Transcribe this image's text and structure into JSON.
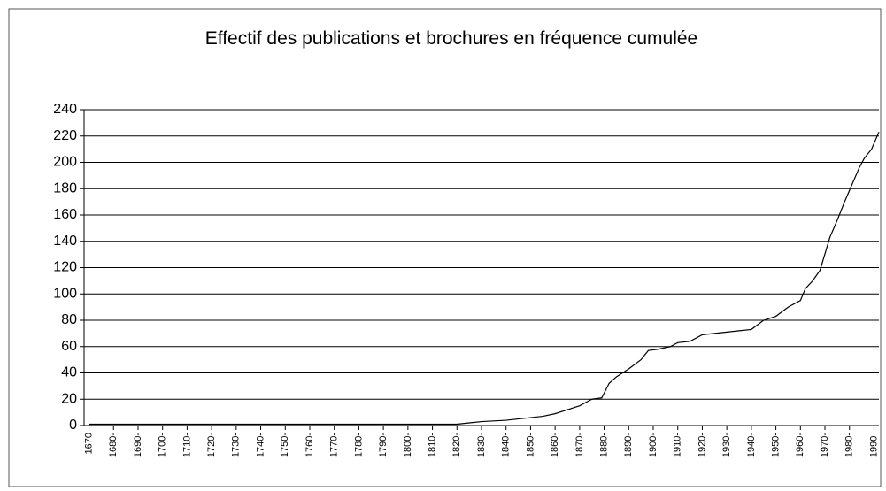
{
  "chart_data": {
    "type": "line",
    "title": "Effectif des publications et brochures en fréquence cumulée",
    "x": [
      1670,
      1820,
      1825,
      1830,
      1840,
      1850,
      1855,
      1860,
      1865,
      1870,
      1875,
      1879,
      1882,
      1885,
      1890,
      1895,
      1898,
      1902,
      1907,
      1910,
      1915,
      1920,
      1925,
      1930,
      1935,
      1940,
      1945,
      1950,
      1955,
      1960,
      1962,
      1965,
      1968,
      1972,
      1975,
      1978,
      1981,
      1984,
      1986,
      1989,
      1992
    ],
    "series": [
      {
        "color": "#000000",
        "values": [
          1,
          1,
          2,
          3,
          4,
          6,
          7,
          9,
          12,
          15,
          20,
          21,
          32,
          37,
          43,
          50,
          57,
          58,
          60,
          63,
          64,
          69,
          70,
          71,
          72,
          73,
          80,
          83,
          90,
          95,
          104,
          110,
          118,
          143,
          156,
          170,
          183,
          196,
          203,
          210,
          223
        ]
      }
    ],
    "xlim": [
      1668,
      1992
    ],
    "xticks": [
      1670,
      {
        "value": 1680,
        "label": "1680-"
      },
      {
        "value": 1690,
        "label": "1690-"
      },
      {
        "value": 1700,
        "label": "1700-"
      },
      {
        "value": 1710,
        "label": "1710-"
      },
      {
        "value": 1720,
        "label": "1720-"
      },
      {
        "value": 1730,
        "label": "1730-"
      },
      {
        "value": 1740,
        "label": "1740-"
      },
      {
        "value": 1750,
        "label": "1750-"
      },
      {
        "value": 1760,
        "label": "1760-"
      },
      {
        "value": 1770,
        "label": "1770-"
      },
      {
        "value": 1780,
        "label": "1780-"
      },
      {
        "value": 1790,
        "label": "1790-"
      },
      {
        "value": 1800,
        "label": "1800-"
      },
      {
        "value": 1810,
        "label": "1810-"
      },
      {
        "value": 1820,
        "label": "1820-"
      },
      {
        "value": 1830,
        "label": "1830-"
      },
      {
        "value": 1840,
        "label": "1840-"
      },
      {
        "value": 1850,
        "label": "1850-"
      },
      {
        "value": 1860,
        "label": "1860-"
      },
      {
        "value": 1870,
        "label": "1870-"
      },
      {
        "value": 1880,
        "label": "1880-"
      },
      {
        "value": 1890,
        "label": "1890-"
      },
      {
        "value": 1900,
        "label": "1900-"
      },
      {
        "value": 1910,
        "label": "1910-"
      },
      {
        "value": 1920,
        "label": "1920-"
      },
      {
        "value": 1930,
        "label": "1930-"
      },
      {
        "value": 1940,
        "label": "1940-"
      },
      {
        "value": 1950,
        "label": "1950-"
      },
      {
        "value": 1960,
        "label": "1960-"
      },
      {
        "value": 1970,
        "label": "1970-"
      },
      {
        "value": 1980,
        "label": "1980-"
      },
      {
        "value": 1990,
        "label": "1990-"
      }
    ],
    "ylim": [
      0,
      240
    ],
    "yticks": [
      0,
      20,
      40,
      60,
      80,
      100,
      120,
      140,
      160,
      180,
      200,
      220,
      240
    ],
    "grid": true
  }
}
